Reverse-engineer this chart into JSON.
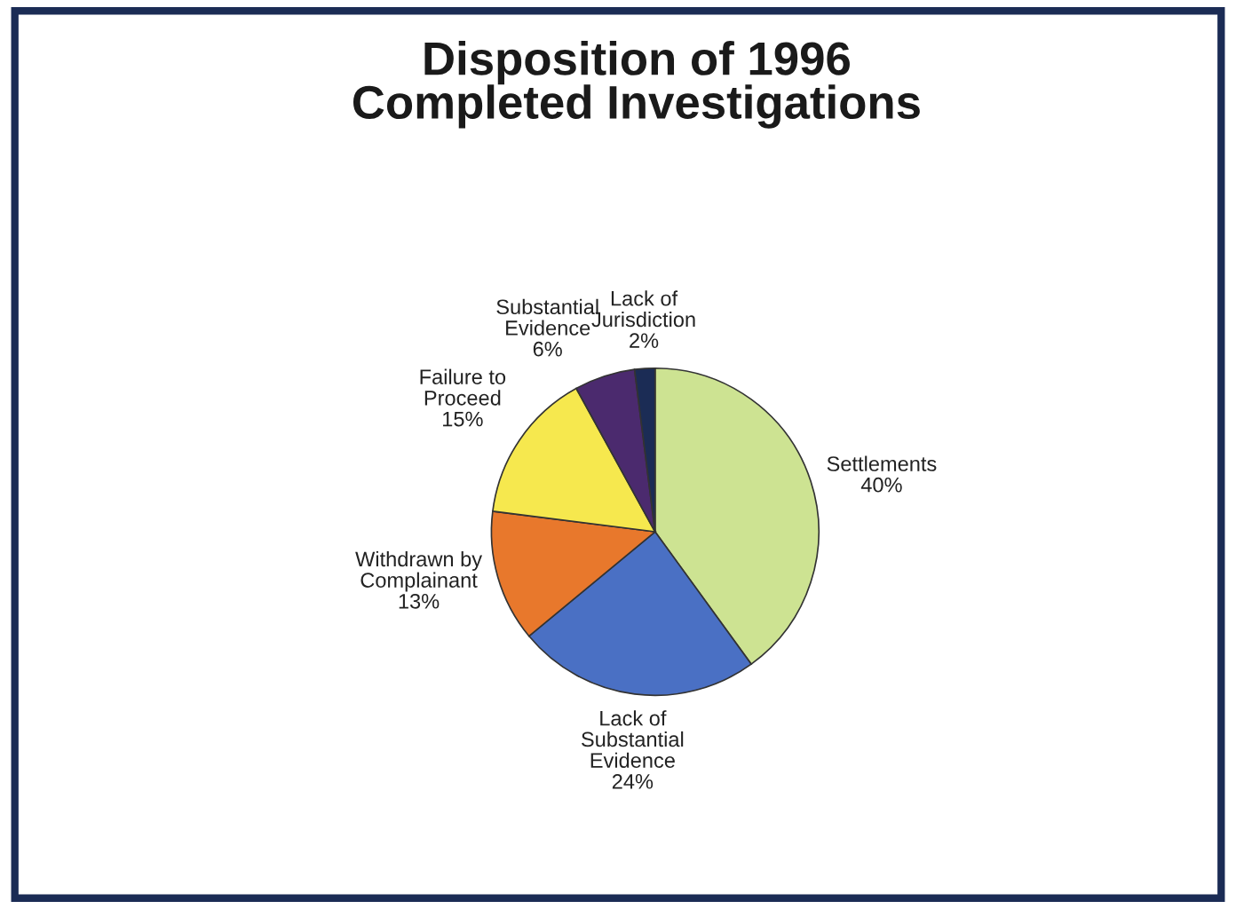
{
  "chart_data": {
    "type": "pie",
    "title": "Disposition of 1996\nCompleted Investigations",
    "categories": [
      "Settlements",
      "Lack of\nSubstantial\nEvidence",
      "Withdrawn by\nComplainant",
      "Failure to\nProceed",
      "Substantial\nEvidence",
      "Lack of\nJurisdiction"
    ],
    "values": [
      40,
      24,
      13,
      15,
      6,
      2
    ],
    "value_labels": [
      "40%",
      "24%",
      "13%",
      "15%",
      "6%",
      "2%"
    ],
    "colors": [
      "#cde392",
      "#4a70c4",
      "#e8782c",
      "#f6e84e",
      "#4b2a6e",
      "#1b2c55"
    ]
  }
}
